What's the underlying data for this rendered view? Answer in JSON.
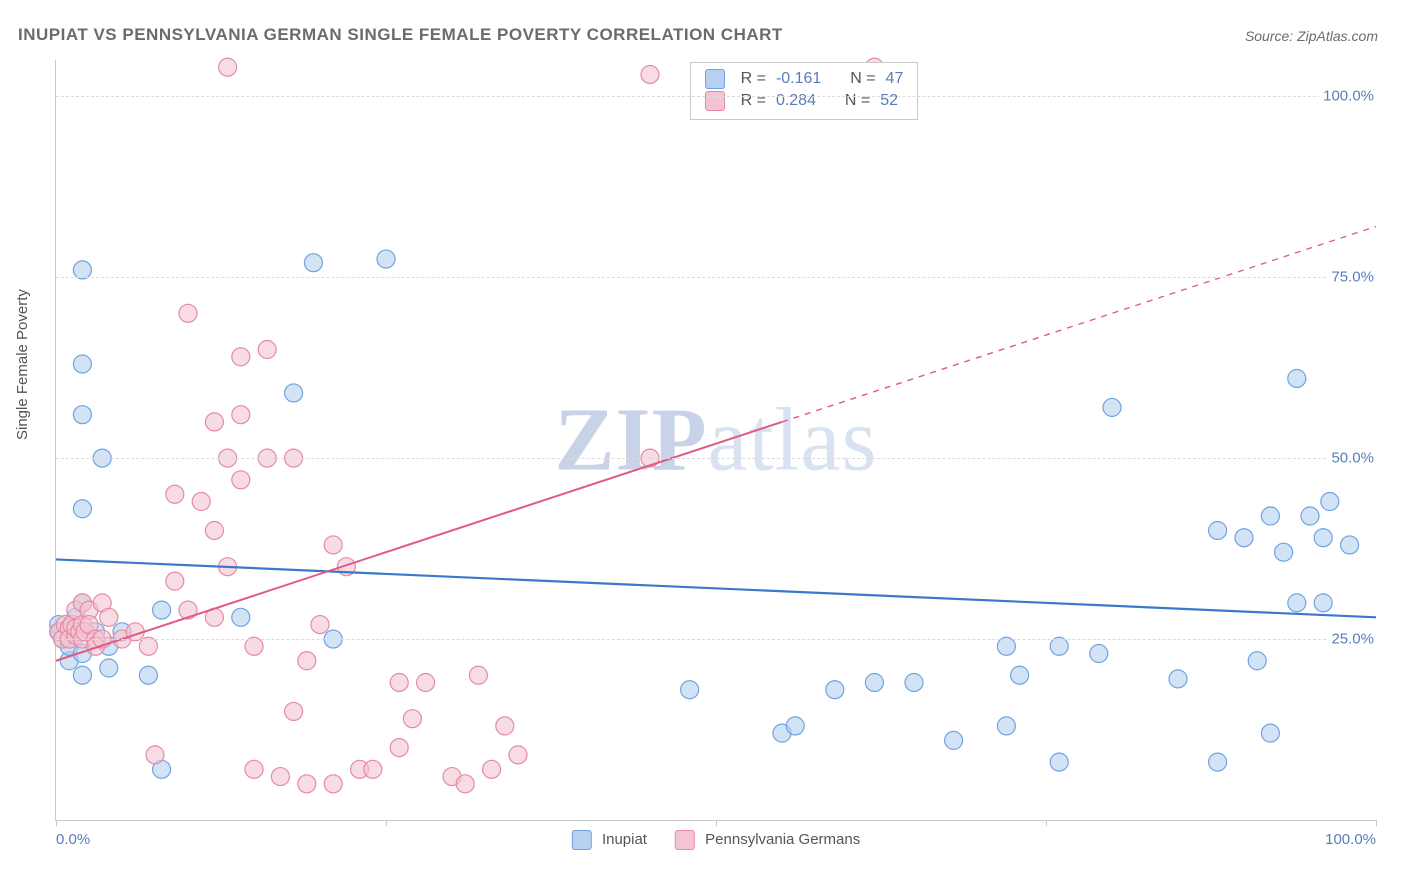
{
  "title": "INUPIAT VS PENNSYLVANIA GERMAN SINGLE FEMALE POVERTY CORRELATION CHART",
  "source_label": "Source: ",
  "source_name": "ZipAtlas.com",
  "ylabel": "Single Female Poverty",
  "watermark_a": "ZIP",
  "watermark_b": "atlas",
  "chart": {
    "type": "scatter",
    "xlim": [
      0,
      100
    ],
    "ylim": [
      0,
      105
    ],
    "ytick_values": [
      25,
      50,
      75,
      100
    ],
    "ytick_labels": [
      "25.0%",
      "50.0%",
      "75.0%",
      "100.0%"
    ],
    "xtick_values": [
      0,
      25,
      50,
      75,
      100
    ],
    "xtick_labels": [
      "0.0%",
      "",
      "",
      "",
      "100.0%"
    ],
    "grid_color": "#dcdcdc",
    "axis_color": "#c9c9c9",
    "axis_label_color": "#5a7db8",
    "axis_label_fontsize": 15,
    "background_color": "#ffffff",
    "marker_radius": 9,
    "marker_stroke_width": 1.2,
    "marker_fill_opacity": 0.25,
    "series": [
      {
        "name": "Inupiat",
        "color_stroke": "#6fa3e0",
        "color_fill": "#b6d1f0",
        "R": "-0.161",
        "N": "47",
        "trend": {
          "x1": 0,
          "y1": 36,
          "x2": 100,
          "y2": 28,
          "dash_from_x": null,
          "stroke": "#3b78c9",
          "width": 2.2
        },
        "points": [
          [
            0.2,
            27
          ],
          [
            0.3,
            26
          ],
          [
            0.5,
            25
          ],
          [
            1,
            22
          ],
          [
            1,
            24
          ],
          [
            1.5,
            28
          ],
          [
            1.5,
            26
          ],
          [
            2,
            30
          ],
          [
            2,
            20
          ],
          [
            2,
            23
          ],
          [
            2,
            43
          ],
          [
            2,
            56
          ],
          [
            2,
            63
          ],
          [
            2,
            76
          ],
          [
            3,
            26
          ],
          [
            3.5,
            50
          ],
          [
            4,
            21
          ],
          [
            4,
            24
          ],
          [
            5,
            26
          ],
          [
            7,
            20
          ],
          [
            8,
            29
          ],
          [
            8,
            7
          ],
          [
            14,
            28
          ],
          [
            18,
            59
          ],
          [
            19.5,
            77
          ],
          [
            21,
            25
          ],
          [
            25,
            77.5
          ],
          [
            48,
            18
          ],
          [
            55,
            12
          ],
          [
            56,
            13
          ],
          [
            59,
            18
          ],
          [
            62,
            19
          ],
          [
            65,
            19
          ],
          [
            68,
            11
          ],
          [
            72,
            13
          ],
          [
            72,
            24
          ],
          [
            73,
            20
          ],
          [
            76,
            24
          ],
          [
            76,
            8
          ],
          [
            79,
            23
          ],
          [
            80,
            57
          ],
          [
            85,
            19.5
          ],
          [
            88,
            8
          ],
          [
            88,
            40
          ],
          [
            90,
            39
          ],
          [
            91,
            22
          ],
          [
            92,
            42
          ],
          [
            92,
            12
          ],
          [
            93,
            37
          ],
          [
            94,
            30
          ],
          [
            94,
            61
          ],
          [
            95,
            42
          ],
          [
            96,
            39
          ],
          [
            96,
            30
          ],
          [
            96.5,
            44
          ],
          [
            98,
            38
          ]
        ]
      },
      {
        "name": "Pennsylvania Germans",
        "color_stroke": "#e68aa4",
        "color_fill": "#f4c4d2",
        "R": "0.284",
        "N": "52",
        "trend": {
          "x1": 0,
          "y1": 22,
          "x2": 100,
          "y2": 82,
          "dash_from_x": 55,
          "stroke": "#e05a85",
          "width": 2
        },
        "points": [
          [
            0.2,
            26
          ],
          [
            0.5,
            25
          ],
          [
            0.7,
            27
          ],
          [
            1,
            26.5
          ],
          [
            1,
            25
          ],
          [
            1.2,
            27
          ],
          [
            1.5,
            25.5
          ],
          [
            1.5,
            26.5
          ],
          [
            1.8,
            26
          ],
          [
            1.5,
            29
          ],
          [
            2,
            27
          ],
          [
            2,
            30
          ],
          [
            2,
            25
          ],
          [
            2.2,
            26
          ],
          [
            2.5,
            29
          ],
          [
            2.5,
            27
          ],
          [
            3,
            25
          ],
          [
            3,
            24
          ],
          [
            3.5,
            25
          ],
          [
            3.5,
            30
          ],
          [
            4,
            28
          ],
          [
            5,
            25
          ],
          [
            6,
            26
          ],
          [
            7,
            24
          ],
          [
            7.5,
            9
          ],
          [
            9,
            45
          ],
          [
            9,
            33
          ],
          [
            10,
            29
          ],
          [
            10,
            70
          ],
          [
            11,
            44
          ],
          [
            12,
            28
          ],
          [
            12,
            40
          ],
          [
            12,
            55
          ],
          [
            13,
            104
          ],
          [
            13,
            35
          ],
          [
            13,
            50
          ],
          [
            14,
            64
          ],
          [
            14,
            47
          ],
          [
            14,
            56
          ],
          [
            15,
            24
          ],
          [
            15,
            7
          ],
          [
            16,
            65
          ],
          [
            16,
            50
          ],
          [
            17,
            6
          ],
          [
            18,
            15
          ],
          [
            18,
            50
          ],
          [
            19,
            5
          ],
          [
            19,
            22
          ],
          [
            20,
            27
          ],
          [
            21,
            5
          ],
          [
            21,
            38
          ],
          [
            22,
            35
          ],
          [
            23,
            7
          ],
          [
            24,
            7
          ],
          [
            26,
            19
          ],
          [
            26,
            10
          ],
          [
            27,
            14
          ],
          [
            28,
            19
          ],
          [
            30,
            6
          ],
          [
            31,
            5
          ],
          [
            32,
            20
          ],
          [
            33,
            7
          ],
          [
            34,
            13
          ],
          [
            35,
            9
          ],
          [
            45,
            103
          ],
          [
            45,
            50
          ],
          [
            62,
            104
          ]
        ]
      }
    ]
  },
  "legend_bottom": [
    {
      "label": "Inupiat",
      "fill": "#b6d1f0",
      "stroke": "#6fa3e0"
    },
    {
      "label": "Pennsylvania Germans",
      "fill": "#f4c4d2",
      "stroke": "#e68aa4"
    }
  ],
  "stats_labels": {
    "R": "R =",
    "N": "N ="
  }
}
